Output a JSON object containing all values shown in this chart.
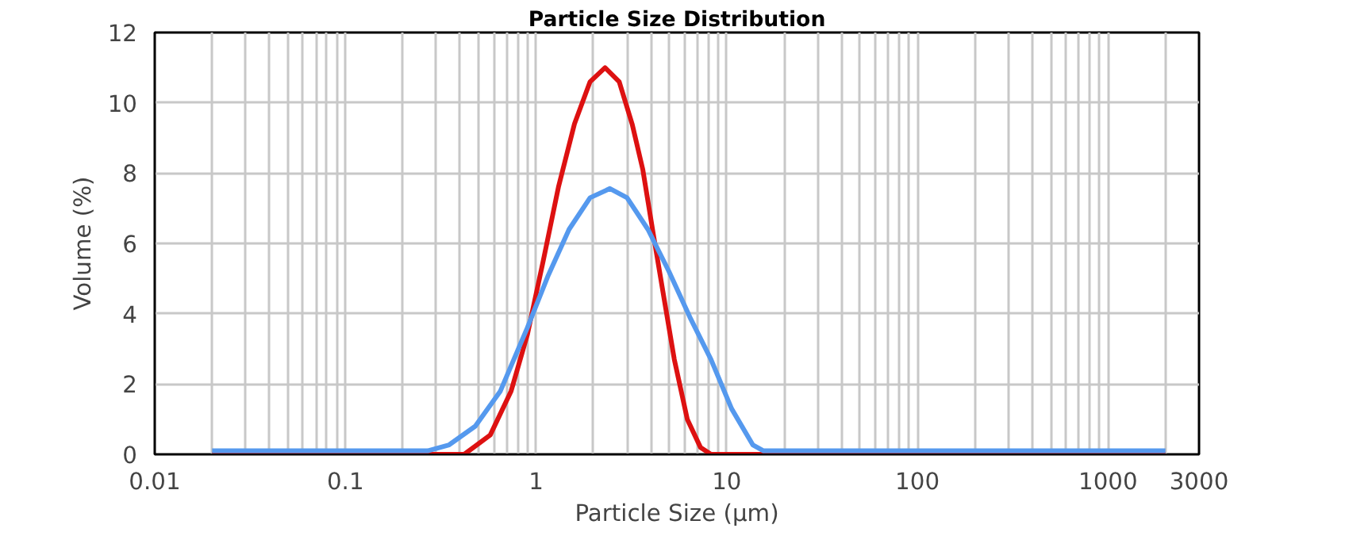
{
  "chart_data": {
    "type": "line",
    "title": "Particle Size Distribution",
    "xlabel": "Particle Size (µm)",
    "ylabel": "Volume (%)",
    "log": "x",
    "xlim": [
      0.01,
      3000
    ],
    "xticks": [
      0.01,
      0.1,
      1,
      10,
      100,
      1000,
      3000
    ],
    "ylim": [
      0,
      12
    ],
    "yticks": [
      0,
      2,
      4,
      6,
      8,
      10,
      12
    ],
    "grid": true,
    "marker": "none",
    "line_style": "solid",
    "series": [
      {
        "color": "#dd1111",
        "x": [
          0.02,
          0.42,
          0.575,
          0.74,
          0.9,
          1.09,
          1.31,
          1.59,
          1.92,
          2.3,
          2.73,
          3.19,
          3.63,
          4.11,
          4.67,
          5.31,
          6.21,
          7.28,
          8.27,
          2000
        ],
        "values": [
          0,
          0,
          0.55,
          1.8,
          3.4,
          5.5,
          7.6,
          9.4,
          10.6,
          11.0,
          10.6,
          9.4,
          8.1,
          6.3,
          4.5,
          2.7,
          1.0,
          0.2,
          0,
          0
        ]
      },
      {
        "color": "#5599ee",
        "x": [
          0.02,
          0.27,
          0.35,
          0.48,
          0.65,
          0.9,
          1.16,
          1.49,
          1.92,
          2.44,
          3.0,
          3.86,
          4.98,
          6.41,
          8.27,
          10.6,
          13.7,
          15.6,
          2000
        ],
        "values": [
          0.1,
          0.1,
          0.27,
          0.8,
          1.8,
          3.6,
          5.1,
          6.4,
          7.3,
          7.56,
          7.3,
          6.4,
          5.2,
          3.9,
          2.7,
          1.3,
          0.27,
          0.1,
          0.1
        ]
      }
    ]
  }
}
